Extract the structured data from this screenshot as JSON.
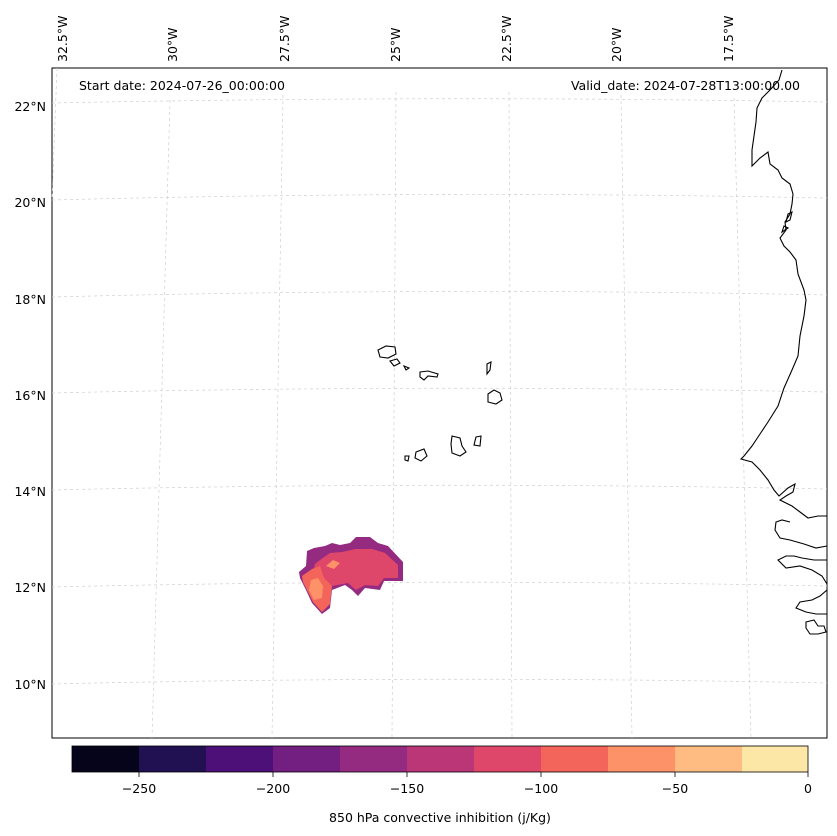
{
  "header": {
    "start_date": "Start date: 2024-07-26_00:00:00",
    "valid_date": "Valid_date: 2024-07-28T13:00:00.00"
  },
  "axes": {
    "lon_labels": [
      "32.5°W",
      "30°W",
      "27.5°W",
      "25°W",
      "22.5°W",
      "20°W",
      "17.5°W"
    ],
    "lat_labels": [
      "22°N",
      "20°N",
      "18°N",
      "16°N",
      "14°N",
      "12°N",
      "10°N"
    ]
  },
  "colorbar": {
    "label": "850 hPa convective inhibition (j/Kg)",
    "ticks": [
      "−250",
      "−200",
      "−150",
      "−100",
      "−50",
      "0"
    ],
    "colors": [
      "#05041b",
      "#221152",
      "#4d0f78",
      "#731f81",
      "#952b80",
      "#bb3677",
      "#df476a",
      "#f3655b",
      "#fd9167",
      "#febc82",
      "#fde7a6"
    ]
  },
  "field": {
    "outer_color": "#952b80",
    "mid_color": "#df476a",
    "inner_color": "#f3655b",
    "peak_color": "#fd9167"
  }
}
